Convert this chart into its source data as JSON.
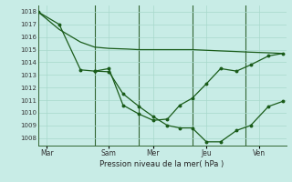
{
  "xlabel": "Pression niveau de la mer( hPa )",
  "bg_color": "#c8ece6",
  "grid_color": "#a8d8cc",
  "line_color": "#1a5c1a",
  "vline_color": "#336633",
  "ylim": [
    1007.4,
    1018.5
  ],
  "yticks": [
    1008,
    1009,
    1010,
    1011,
    1012,
    1013,
    1014,
    1015,
    1016,
    1017,
    1018
  ],
  "xlim": [
    0,
    14
  ],
  "xtick_positions": [
    0.5,
    4.0,
    6.5,
    9.5,
    12.5
  ],
  "xtick_labels": [
    "Mar",
    "Sam",
    "Mer",
    "Jeu",
    "Ven"
  ],
  "vline_positions": [
    3.2,
    5.7,
    8.7,
    11.7
  ],
  "line1_x": [
    0,
    1.2,
    2.4,
    3.2,
    4.0,
    5.0,
    5.7,
    6.5,
    7.3,
    8.0,
    8.7,
    9.5,
    10.3,
    11.2,
    12.0,
    13.0,
    13.8
  ],
  "line1_y": [
    1018.0,
    1016.6,
    1015.6,
    1015.2,
    1015.1,
    1015.05,
    1015.0,
    1015.0,
    1015.0,
    1015.0,
    1015.0,
    1014.95,
    1014.9,
    1014.85,
    1014.8,
    1014.75,
    1014.7
  ],
  "line2_x": [
    0,
    1.2,
    2.4,
    3.2,
    4.0,
    4.8,
    5.7,
    6.5,
    7.3,
    8.0,
    8.7,
    9.5,
    10.3,
    11.2,
    12.0,
    13.0,
    13.8
  ],
  "line2_y": [
    1018.0,
    1017.0,
    1013.4,
    1013.3,
    1013.25,
    1011.5,
    1010.5,
    1009.7,
    1009.0,
    1008.8,
    1008.8,
    1007.7,
    1007.7,
    1008.6,
    1009.0,
    1010.5,
    1010.9
  ],
  "line3_x": [
    3.2,
    4.0,
    4.8,
    5.7,
    6.5,
    7.3,
    8.0,
    8.7,
    9.5,
    10.3,
    11.2,
    12.0,
    13.0,
    13.8
  ],
  "line3_y": [
    1013.3,
    1013.5,
    1010.6,
    1009.9,
    1009.4,
    1009.5,
    1010.6,
    1011.15,
    1012.3,
    1013.5,
    1013.3,
    1013.8,
    1014.5,
    1014.7
  ]
}
